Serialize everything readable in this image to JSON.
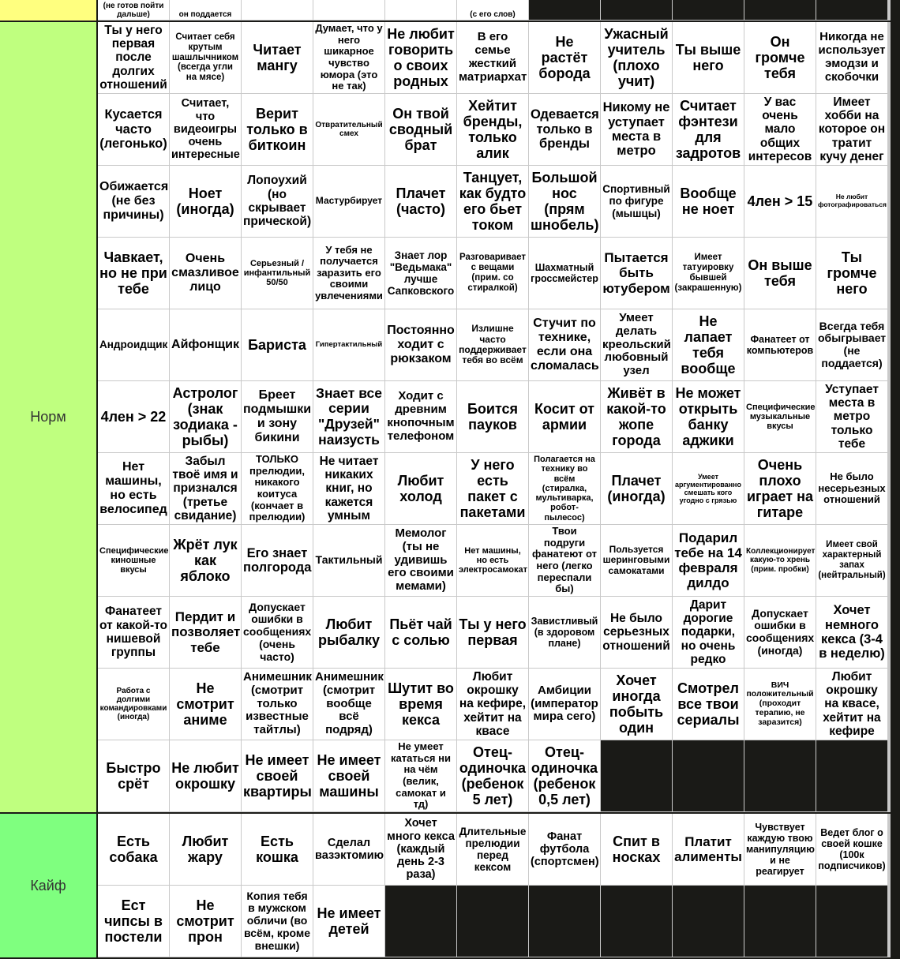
{
  "colors": {
    "top": "#ffff7f",
    "norm": "#bfff7f",
    "kaif": "#7fff7f",
    "background": "#1a1a17"
  },
  "tiers": [
    {
      "label": "",
      "rows": [
        [
          "(не готов пойти дальше)",
          "он поддается",
          "",
          "",
          "",
          "(с его слов)"
        ]
      ]
    },
    {
      "label": "Норм",
      "rows": [
        [
          "Ты у него первая после долгих отношений",
          "Считает себя крутым шашлычником (всегда угли на мясе)",
          "Читает мангу",
          "Думает, что у него шикарное чувство юмора (это не так)",
          "Не любит говорить о своих родных",
          "В его семье жесткий матриархат",
          "Не растёт борода",
          "Ужасный учитель (плохо учит)",
          "Ты выше него",
          "Он громче тебя",
          "Никогда не использует эмодзи и скобочки"
        ],
        [
          "Кусается часто (легонько)",
          "Считает, что видеоигры очень интересные",
          "Верит только в биткоин",
          "Отвратительный смех",
          "Он твой сводный брат",
          "Хейтит бренды, только алик",
          "Одевается только в бренды",
          "Никому не уступает места в метро",
          "Считает фэнтези для задротов",
          "У вас очень мало общих интересов",
          "Имеет хобби на которое он тратит кучу денег"
        ],
        [
          "Обижается (не без причины)",
          "Ноет (иногда)",
          "Лопоухий (но скрывает прической)",
          "Мастурбирует",
          "Плачет (часто)",
          "Танцует, как будто его бьет током",
          "Большой нос (прям шнобель)",
          "Спортивный по фигуре (мышцы)",
          "Вообще не ноет",
          "4лен > 15",
          "Не любит фотографироваться"
        ],
        [
          "Чавкает, но не при тебе",
          "Очень смазливое лицо",
          "Серьезный / инфантильный 50/50",
          "У тебя не получается заразить его своими увлечениями",
          "Знает лор \"Ведьмака\" лучше Сапковского",
          "Разговаривает с вещами (прим. со стиралкой)",
          "Шахматный гроссмейстер",
          "Пытается быть ютубером",
          "Имеет татуировку бывшей (закрашенную)",
          "Он выше тебя",
          "Ты громче него"
        ],
        [
          "Андроидщик",
          "Айфонщик",
          "Бариста",
          "Гипертактильный",
          "Постоянно ходит с рюкзаком",
          "Излишне часто поддерживает тебя во всём",
          "Стучит по технике, если она сломалась",
          "Умеет делать креольский любовный узел",
          "Не лапает тебя вообще",
          "Фанатеет от компьютеров",
          "Всегда тебя обыгрывает (не поддается)"
        ],
        [
          "4лен > 22",
          "Астролог (знак зодиака - рыбы)",
          "Бреет подмышки и зону бикини",
          "Знает все серии \"Друзей\" наизусть",
          "Ходит с древним кнопочным телефоном",
          "Боится пауков",
          "Косит от армии",
          "Живёт в какой-то жопе города",
          "Не может открыть банку аджики",
          "Специфические музыкальные вкусы",
          "Уступает места в метро только тебе"
        ],
        [
          "Нет машины, но есть велосипед",
          "Забыл твоё имя и признался (третье свидание)",
          "ТОЛЬКО прелюдии, никакого коитуса (кончает в прелюдии)",
          "Не читает никаких книг, но кажется умным",
          "Любит холод",
          "У него есть пакет с пакетами",
          "Полагается на технику во всём (стиралка, мультиварка, робот-пылесос)",
          "Плачет (иногда)",
          "Умеет аргументированно смешать кого угодно с грязью",
          "Очень плохо играет на гитаре",
          "Не было несерьезных отношений"
        ],
        [
          "Специфические киношные вкусы",
          "Жрёт лук как яблоко",
          "Его знает полгорода",
          "Тактильный",
          "Мемолог (ты не удивишь его своими мемами)",
          "Нет машины, но есть электросамокат",
          "Твои подруги фанатеют от него (легко переспали бы)",
          "Пользуется шеринговыми самокатами",
          "Подарил тебе на 14 февраля дилдо",
          "Коллекционирует какую-то хрень (прим. пробки)",
          "Имеет свой характерный запах (нейтральный)"
        ],
        [
          "Фанатеет от какой-то нишевой группы",
          "Пердит и позволяет тебе",
          "Допускает ошибки в сообщениях (очень часто)",
          "Любит рыбалку",
          "Пьёт чай с солью",
          "Ты у него первая",
          "Завистливый (в здоровом плане)",
          "Не было серьезных отношений",
          "Дарит дорогие подарки, но очень редко",
          "Допускает ошибки в сообщениях (иногда)",
          "Хочет немного кекса (3-4 в неделю)"
        ],
        [
          "Работа с долгими командировками (иногда)",
          "Не смотрит аниме",
          "Анимешник (смотрит только известные тайтлы)",
          "Анимешник (смотрит вообще всё подряд)",
          "Шутит во время кекса",
          "Любит окрошку на кефире, хейтит на квасе",
          "Амбиции (император мира сего)",
          "Хочет иногда побыть один",
          "Смотрел все твои сериалы",
          "ВИЧ положительный (проходит терапию, не заразится)",
          "Любит окрошку на квасе, хейтит на кефире"
        ],
        [
          "Быстро срёт",
          "Не любит окрошку",
          "Не имеет своей квартиры",
          "Не имеет своей машины",
          "Не умеет кататься ни на чём (велик, самокат и тд)",
          "Отец-одиночка (ребенок 5 лет)",
          "Отец-одиночка (ребенок 0,5 лет)"
        ]
      ]
    },
    {
      "label": "Кайф",
      "rows": [
        [
          "Есть собака",
          "Любит жару",
          "Есть кошка",
          "Сделал вазэктомию",
          "Хочет много кекса (каждый день 2-3 раза)",
          "Длительные прелюдии перед кексом",
          "Фанат футбола (спортсмен)",
          "Спит в носках",
          "Платит алименты",
          "Чувствует каждую твою манипуляцию и не реагирует",
          "Ведет блог о своей кошке (100к подписчиков)"
        ],
        [
          "Ест чипсы в постели",
          "Не смотрит прон",
          "Копия тебя в мужском обличи (во всём, кроме внешки)",
          "Не имеет детей"
        ]
      ]
    }
  ]
}
